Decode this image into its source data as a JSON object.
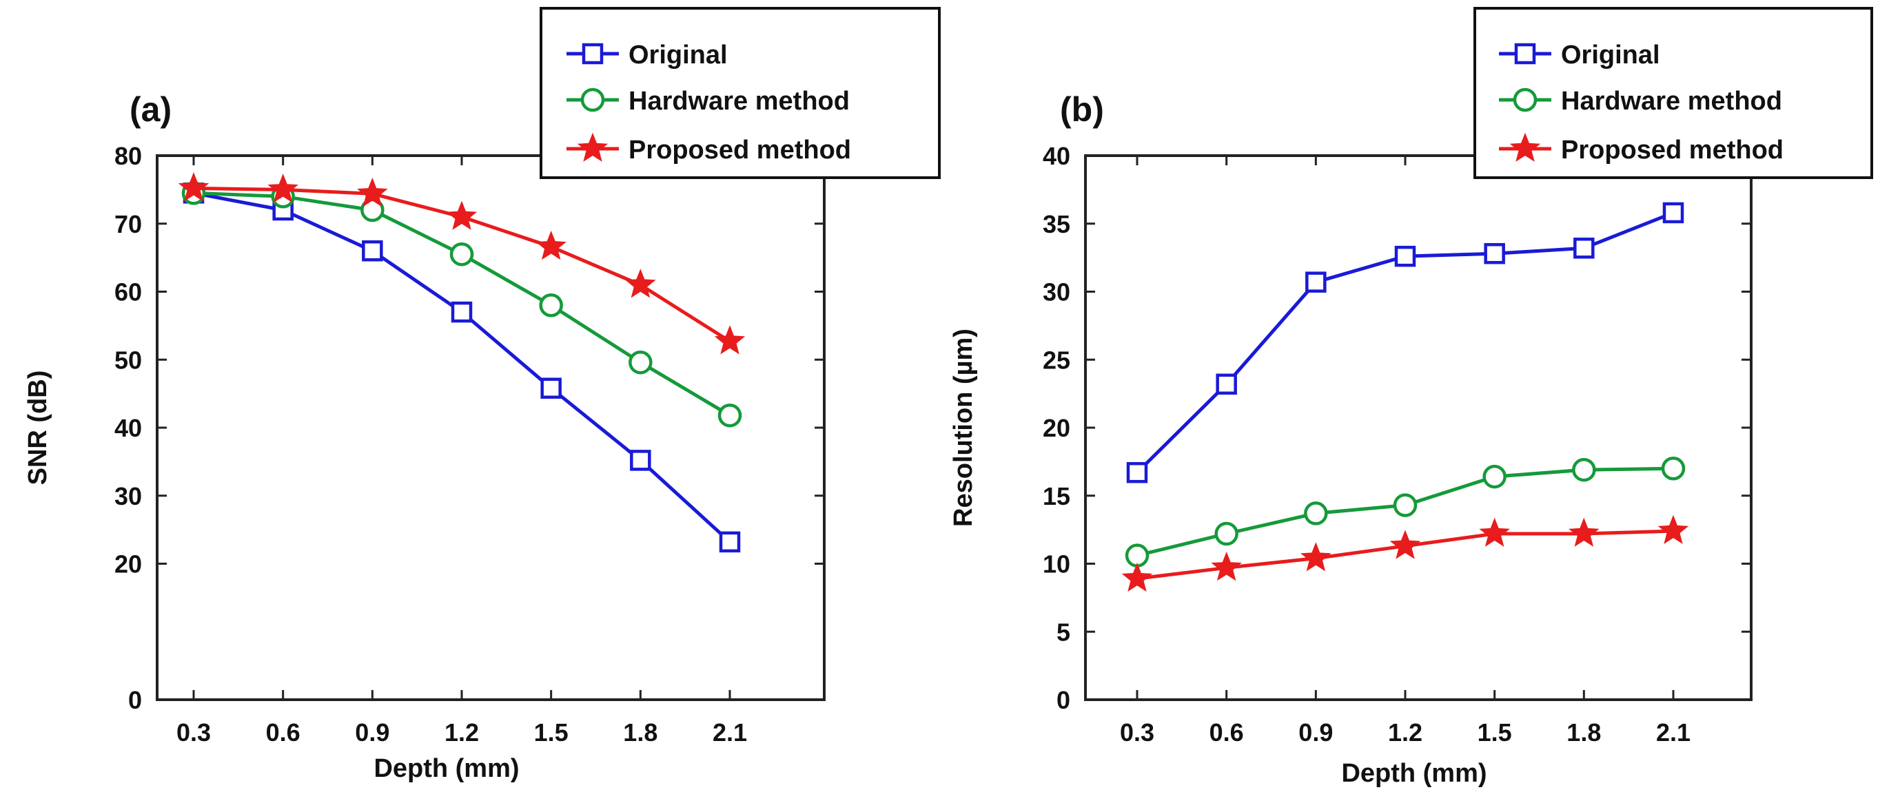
{
  "chart_data": [
    {
      "type": "line",
      "panel_label": "(a)",
      "xlabel": "Depth (mm)",
      "ylabel": "SNR (dB)",
      "ylim": [
        0,
        80
      ],
      "yticks": [
        "0",
        "20",
        "30",
        "40",
        "50",
        "60",
        "70",
        "80"
      ],
      "categories": [
        "0.3",
        "0.6",
        "0.9",
        "1.2",
        "1.5",
        "1.8",
        "2.1"
      ],
      "legend_position": "top-right",
      "series": [
        {
          "name": "Original",
          "marker": "square",
          "color": "#1a1ad6",
          "values": [
            74.5,
            72,
            66,
            57,
            45.8,
            35.2,
            23.2
          ]
        },
        {
          "name": "Hardware method",
          "marker": "circle",
          "color": "#159a3a",
          "values": [
            74.5,
            74,
            72,
            65.5,
            58,
            49.6,
            41.8
          ]
        },
        {
          "name": "Proposed method",
          "marker": "star",
          "color": "#e81c1c",
          "values": [
            75.2,
            75,
            74.4,
            71,
            66.6,
            61,
            52.7
          ]
        }
      ]
    },
    {
      "type": "line",
      "panel_label": "(b)",
      "xlabel": "Depth (mm)",
      "ylabel": "Resolution (µm)",
      "ylim": [
        0,
        40
      ],
      "yticks": [
        "0",
        "5",
        "10",
        "15",
        "20",
        "25",
        "30",
        "35",
        "40"
      ],
      "categories": [
        "0.3",
        "0.6",
        "0.9",
        "1.2",
        "1.5",
        "1.8",
        "2.1"
      ],
      "legend_position": "top-right",
      "series": [
        {
          "name": "Original",
          "marker": "square",
          "color": "#1a1ad6",
          "values": [
            16.7,
            23.2,
            30.7,
            32.6,
            32.8,
            33.2,
            35.8
          ]
        },
        {
          "name": "Hardware method",
          "marker": "circle",
          "color": "#159a3a",
          "values": [
            10.6,
            12.2,
            13.7,
            14.3,
            16.4,
            16.9,
            17
          ]
        },
        {
          "name": "Proposed method",
          "marker": "star",
          "color": "#e81c1c",
          "values": [
            8.9,
            9.7,
            10.4,
            11.3,
            12.2,
            12.2,
            12.4
          ]
        }
      ]
    }
  ]
}
